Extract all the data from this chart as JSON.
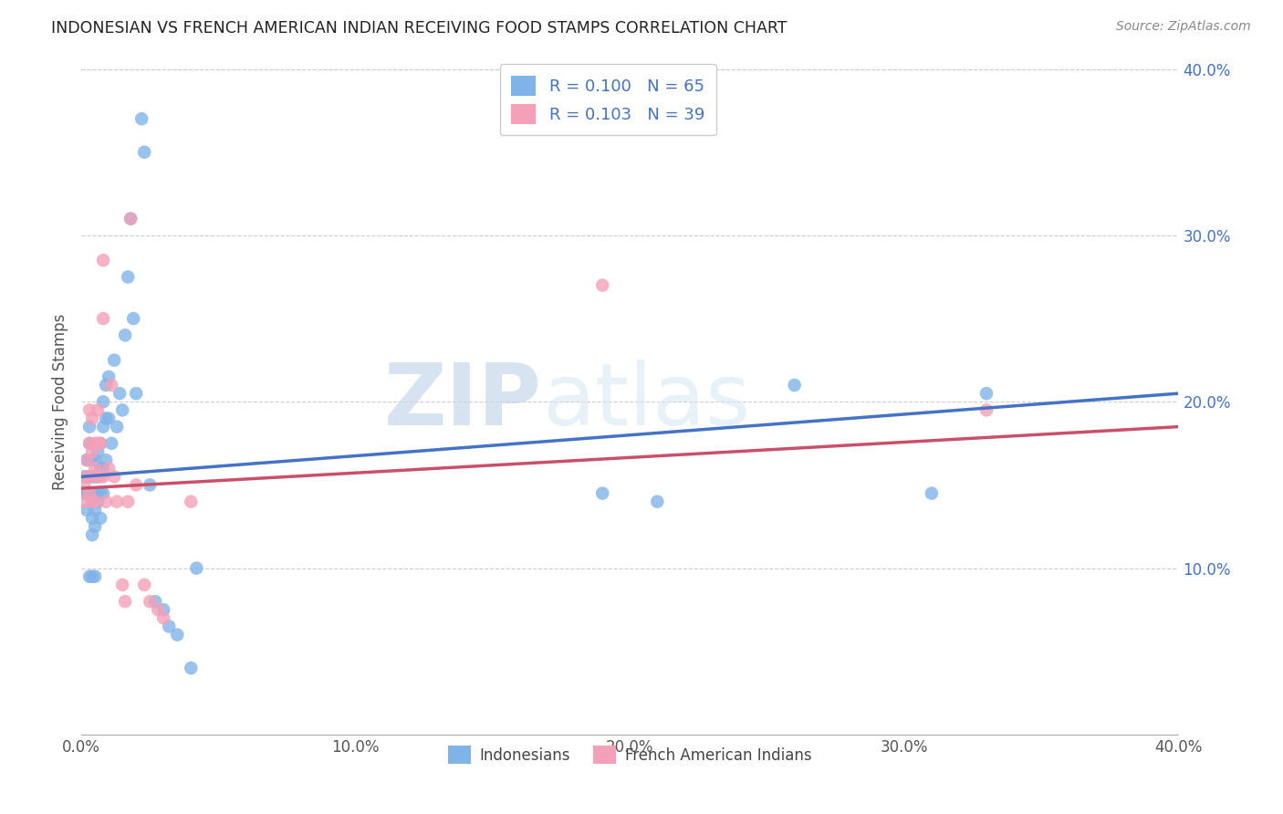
{
  "title": "INDONESIAN VS FRENCH AMERICAN INDIAN RECEIVING FOOD STAMPS CORRELATION CHART",
  "source": "Source: ZipAtlas.com",
  "ylabel": "Receiving Food Stamps",
  "xlim": [
    0.0,
    0.4
  ],
  "ylim": [
    0.0,
    0.4
  ],
  "xtick_labels": [
    "0.0%",
    "",
    "10.0%",
    "",
    "20.0%",
    "",
    "30.0%",
    "",
    "40.0%"
  ],
  "xtick_vals": [
    0.0,
    0.05,
    0.1,
    0.15,
    0.2,
    0.25,
    0.3,
    0.35,
    0.4
  ],
  "ytick_labels": [
    "10.0%",
    "20.0%",
    "30.0%",
    "40.0%"
  ],
  "ytick_vals": [
    0.1,
    0.2,
    0.3,
    0.4
  ],
  "color_indonesian": "#80B3E8",
  "color_french": "#F4A0B8",
  "color_line_indonesian": "#4472C4",
  "color_line_french": "#C9506A",
  "watermark_zip": "ZIP",
  "watermark_atlas": "atlas",
  "indonesian_x": [
    0.001,
    0.001,
    0.002,
    0.002,
    0.002,
    0.002,
    0.003,
    0.003,
    0.003,
    0.003,
    0.003,
    0.003,
    0.004,
    0.004,
    0.004,
    0.004,
    0.004,
    0.004,
    0.004,
    0.005,
    0.005,
    0.005,
    0.005,
    0.005,
    0.005,
    0.006,
    0.006,
    0.006,
    0.007,
    0.007,
    0.007,
    0.007,
    0.008,
    0.008,
    0.008,
    0.008,
    0.009,
    0.009,
    0.009,
    0.01,
    0.01,
    0.011,
    0.012,
    0.013,
    0.014,
    0.015,
    0.016,
    0.017,
    0.018,
    0.019,
    0.02,
    0.022,
    0.023,
    0.025,
    0.027,
    0.03,
    0.032,
    0.035,
    0.04,
    0.042,
    0.19,
    0.21,
    0.26,
    0.31,
    0.33
  ],
  "indonesian_y": [
    0.155,
    0.145,
    0.165,
    0.155,
    0.145,
    0.135,
    0.185,
    0.175,
    0.165,
    0.155,
    0.145,
    0.095,
    0.165,
    0.155,
    0.145,
    0.14,
    0.13,
    0.12,
    0.095,
    0.165,
    0.155,
    0.145,
    0.135,
    0.125,
    0.095,
    0.17,
    0.155,
    0.14,
    0.175,
    0.16,
    0.145,
    0.13,
    0.2,
    0.185,
    0.16,
    0.145,
    0.21,
    0.19,
    0.165,
    0.215,
    0.19,
    0.175,
    0.225,
    0.185,
    0.205,
    0.195,
    0.24,
    0.275,
    0.31,
    0.25,
    0.205,
    0.37,
    0.35,
    0.15,
    0.08,
    0.075,
    0.065,
    0.06,
    0.04,
    0.1,
    0.145,
    0.14,
    0.21,
    0.145,
    0.205
  ],
  "french_x": [
    0.001,
    0.001,
    0.002,
    0.002,
    0.003,
    0.003,
    0.003,
    0.004,
    0.004,
    0.004,
    0.004,
    0.005,
    0.005,
    0.005,
    0.006,
    0.006,
    0.006,
    0.007,
    0.007,
    0.008,
    0.008,
    0.008,
    0.009,
    0.01,
    0.011,
    0.012,
    0.013,
    0.015,
    0.016,
    0.017,
    0.018,
    0.02,
    0.023,
    0.025,
    0.028,
    0.03,
    0.04,
    0.19,
    0.33
  ],
  "french_y": [
    0.15,
    0.14,
    0.165,
    0.155,
    0.195,
    0.175,
    0.145,
    0.19,
    0.17,
    0.155,
    0.14,
    0.175,
    0.16,
    0.14,
    0.195,
    0.175,
    0.155,
    0.175,
    0.155,
    0.285,
    0.25,
    0.155,
    0.14,
    0.16,
    0.21,
    0.155,
    0.14,
    0.09,
    0.08,
    0.14,
    0.31,
    0.15,
    0.09,
    0.08,
    0.075,
    0.07,
    0.14,
    0.27,
    0.195
  ],
  "trend_indo_x0": 0.0,
  "trend_indo_y0": 0.155,
  "trend_indo_x1": 0.4,
  "trend_indo_y1": 0.205,
  "trend_french_x0": 0.0,
  "trend_french_y0": 0.148,
  "trend_french_x1": 0.4,
  "trend_french_y1": 0.185
}
